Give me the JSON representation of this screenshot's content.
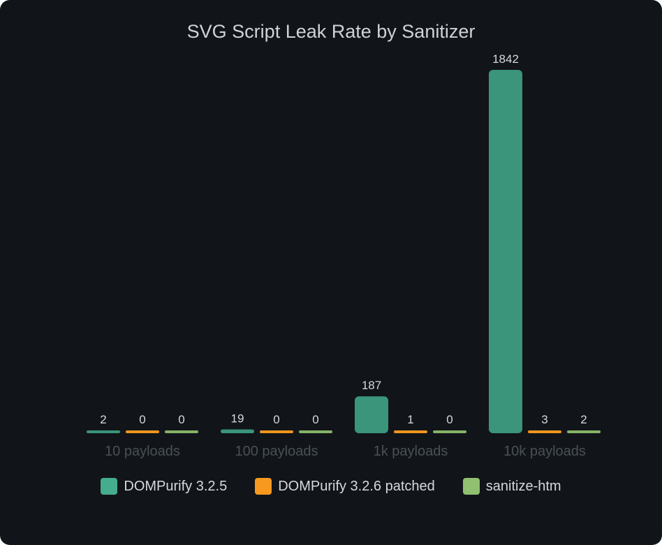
{
  "chart_data": {
    "type": "bar",
    "title": "SVG Script Leak Rate by Sanitizer",
    "categories": [
      "10 payloads",
      "100 payloads",
      "1k payloads",
      "10k payloads"
    ],
    "series": [
      {
        "name": "DOMPurify 3.2.5",
        "values": [
          2,
          19,
          187,
          1842
        ],
        "color": "#3a957a",
        "legend_color": "#45ad8e"
      },
      {
        "name": "DOMPurify 3.2.6 patched",
        "values": [
          0,
          0,
          1,
          3
        ],
        "color": "#f0951e",
        "legend_color": "#f7981f"
      },
      {
        "name": "sanitize-htm",
        "values": [
          0,
          0,
          0,
          2
        ],
        "color": "#86b366",
        "legend_color": "#90c070"
      }
    ],
    "ylim": [
      0,
      1842
    ],
    "grid": false,
    "legend": "bottom",
    "data_labels": true
  }
}
